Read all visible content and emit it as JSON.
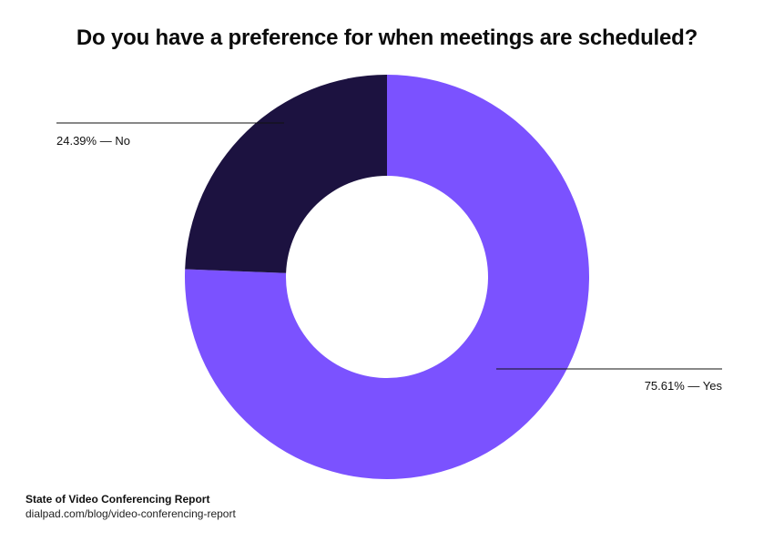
{
  "chart_data": {
    "type": "pie",
    "style": "donut",
    "title": "Do you have a preference for when meetings are scheduled?",
    "slices": [
      {
        "label": "Yes",
        "value": 75.61,
        "value_text": "75.61%",
        "color": "#7b52ff"
      },
      {
        "label": "No",
        "value": 24.39,
        "value_text": "24.39%",
        "color": "#1c1240"
      }
    ],
    "start": "12 o'clock, clockwise"
  },
  "source": {
    "title": "State of Video Conferencing Report",
    "url": "dialpad.com/blog/video-conferencing-report"
  }
}
